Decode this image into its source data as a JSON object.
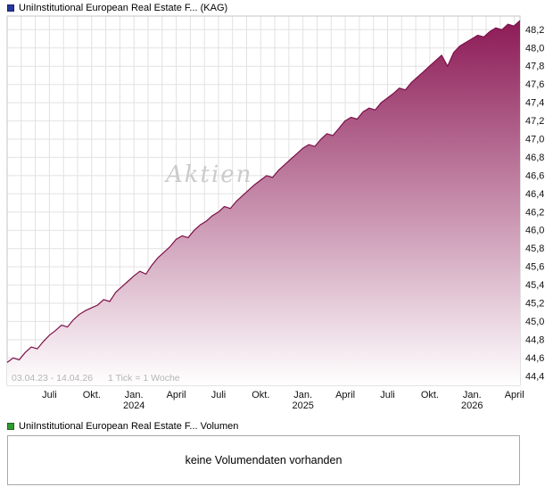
{
  "price_chart": {
    "legend": "UniInstitutional European Real Estate F... (KAG)",
    "legend_color": "#27379c",
    "watermark": "Aktien",
    "range_label": "03.04.23 - 14.04.26",
    "tick_info": "1 Tick = 1 Woche"
  },
  "volume_panel": {
    "legend": "UniInstitutional European Real Estate F... Volumen",
    "legend_color": "#2e9b2e",
    "message": "keine Volumendaten vorhanden"
  },
  "chart_data": {
    "type": "area",
    "title": "UniInstitutional European Real Estate F... (KAG)",
    "x_start": "03.04.23",
    "x_end": "14.04.26",
    "tick_interval": "1 Woche",
    "ylim": [
      44.3,
      48.35
    ],
    "months_total": 36.4,
    "grid": true,
    "y_axis_side": "right",
    "line_color": "#7d1049",
    "area_gradient": [
      "#8c1a56",
      "#ffffff"
    ],
    "y_tick_values": [
      48.2,
      48.0,
      47.8,
      47.6,
      47.4,
      47.2,
      47.0,
      46.8,
      46.6,
      46.4,
      46.2,
      46.0,
      45.8,
      45.6,
      45.4,
      45.2,
      45.0,
      44.8,
      44.6,
      44.4
    ],
    "y_tick_labels": [
      "48,2",
      "48,0",
      "47,8",
      "47,6",
      "47,4",
      "47,2",
      "47,0",
      "46,8",
      "46,6",
      "46,4",
      "46,2",
      "46,0",
      "45,8",
      "45,6",
      "45,4",
      "45,2",
      "45,0",
      "44,8",
      "44,6",
      "44,4"
    ],
    "x_ticks": [
      {
        "month": 3,
        "label": "Juli"
      },
      {
        "month": 6,
        "label": "Okt."
      },
      {
        "month": 9,
        "label": "Jan.",
        "year": "2024"
      },
      {
        "month": 12,
        "label": "April"
      },
      {
        "month": 15,
        "label": "Juli"
      },
      {
        "month": 18,
        "label": "Okt."
      },
      {
        "month": 21,
        "label": "Jan.",
        "year": "2025"
      },
      {
        "month": 24,
        "label": "April"
      },
      {
        "month": 27,
        "label": "Juli"
      },
      {
        "month": 30,
        "label": "Okt."
      },
      {
        "month": 33,
        "label": "Jan.",
        "year": "2026"
      },
      {
        "month": 36,
        "label": "April"
      }
    ],
    "values": [
      44.55,
      44.6,
      44.58,
      44.66,
      44.72,
      44.7,
      44.78,
      44.85,
      44.9,
      44.96,
      44.94,
      45.02,
      45.08,
      45.12,
      45.15,
      45.18,
      45.24,
      45.22,
      45.32,
      45.38,
      45.44,
      45.5,
      45.55,
      45.52,
      45.62,
      45.7,
      45.76,
      45.82,
      45.9,
      45.94,
      45.92,
      46.0,
      46.06,
      46.1,
      46.16,
      46.2,
      46.26,
      46.24,
      46.32,
      46.38,
      46.44,
      46.5,
      46.55,
      46.6,
      46.58,
      46.66,
      46.72,
      46.78,
      46.84,
      46.9,
      46.94,
      46.92,
      47.0,
      47.06,
      47.04,
      47.12,
      47.2,
      47.24,
      47.22,
      47.3,
      47.34,
      47.32,
      47.4,
      47.45,
      47.5,
      47.56,
      47.54,
      47.62,
      47.68,
      47.74,
      47.8,
      47.86,
      47.92,
      47.8,
      47.95,
      48.02,
      48.06,
      48.1,
      48.14,
      48.12,
      48.18,
      48.22,
      48.2,
      48.26,
      48.24,
      48.3
    ]
  }
}
